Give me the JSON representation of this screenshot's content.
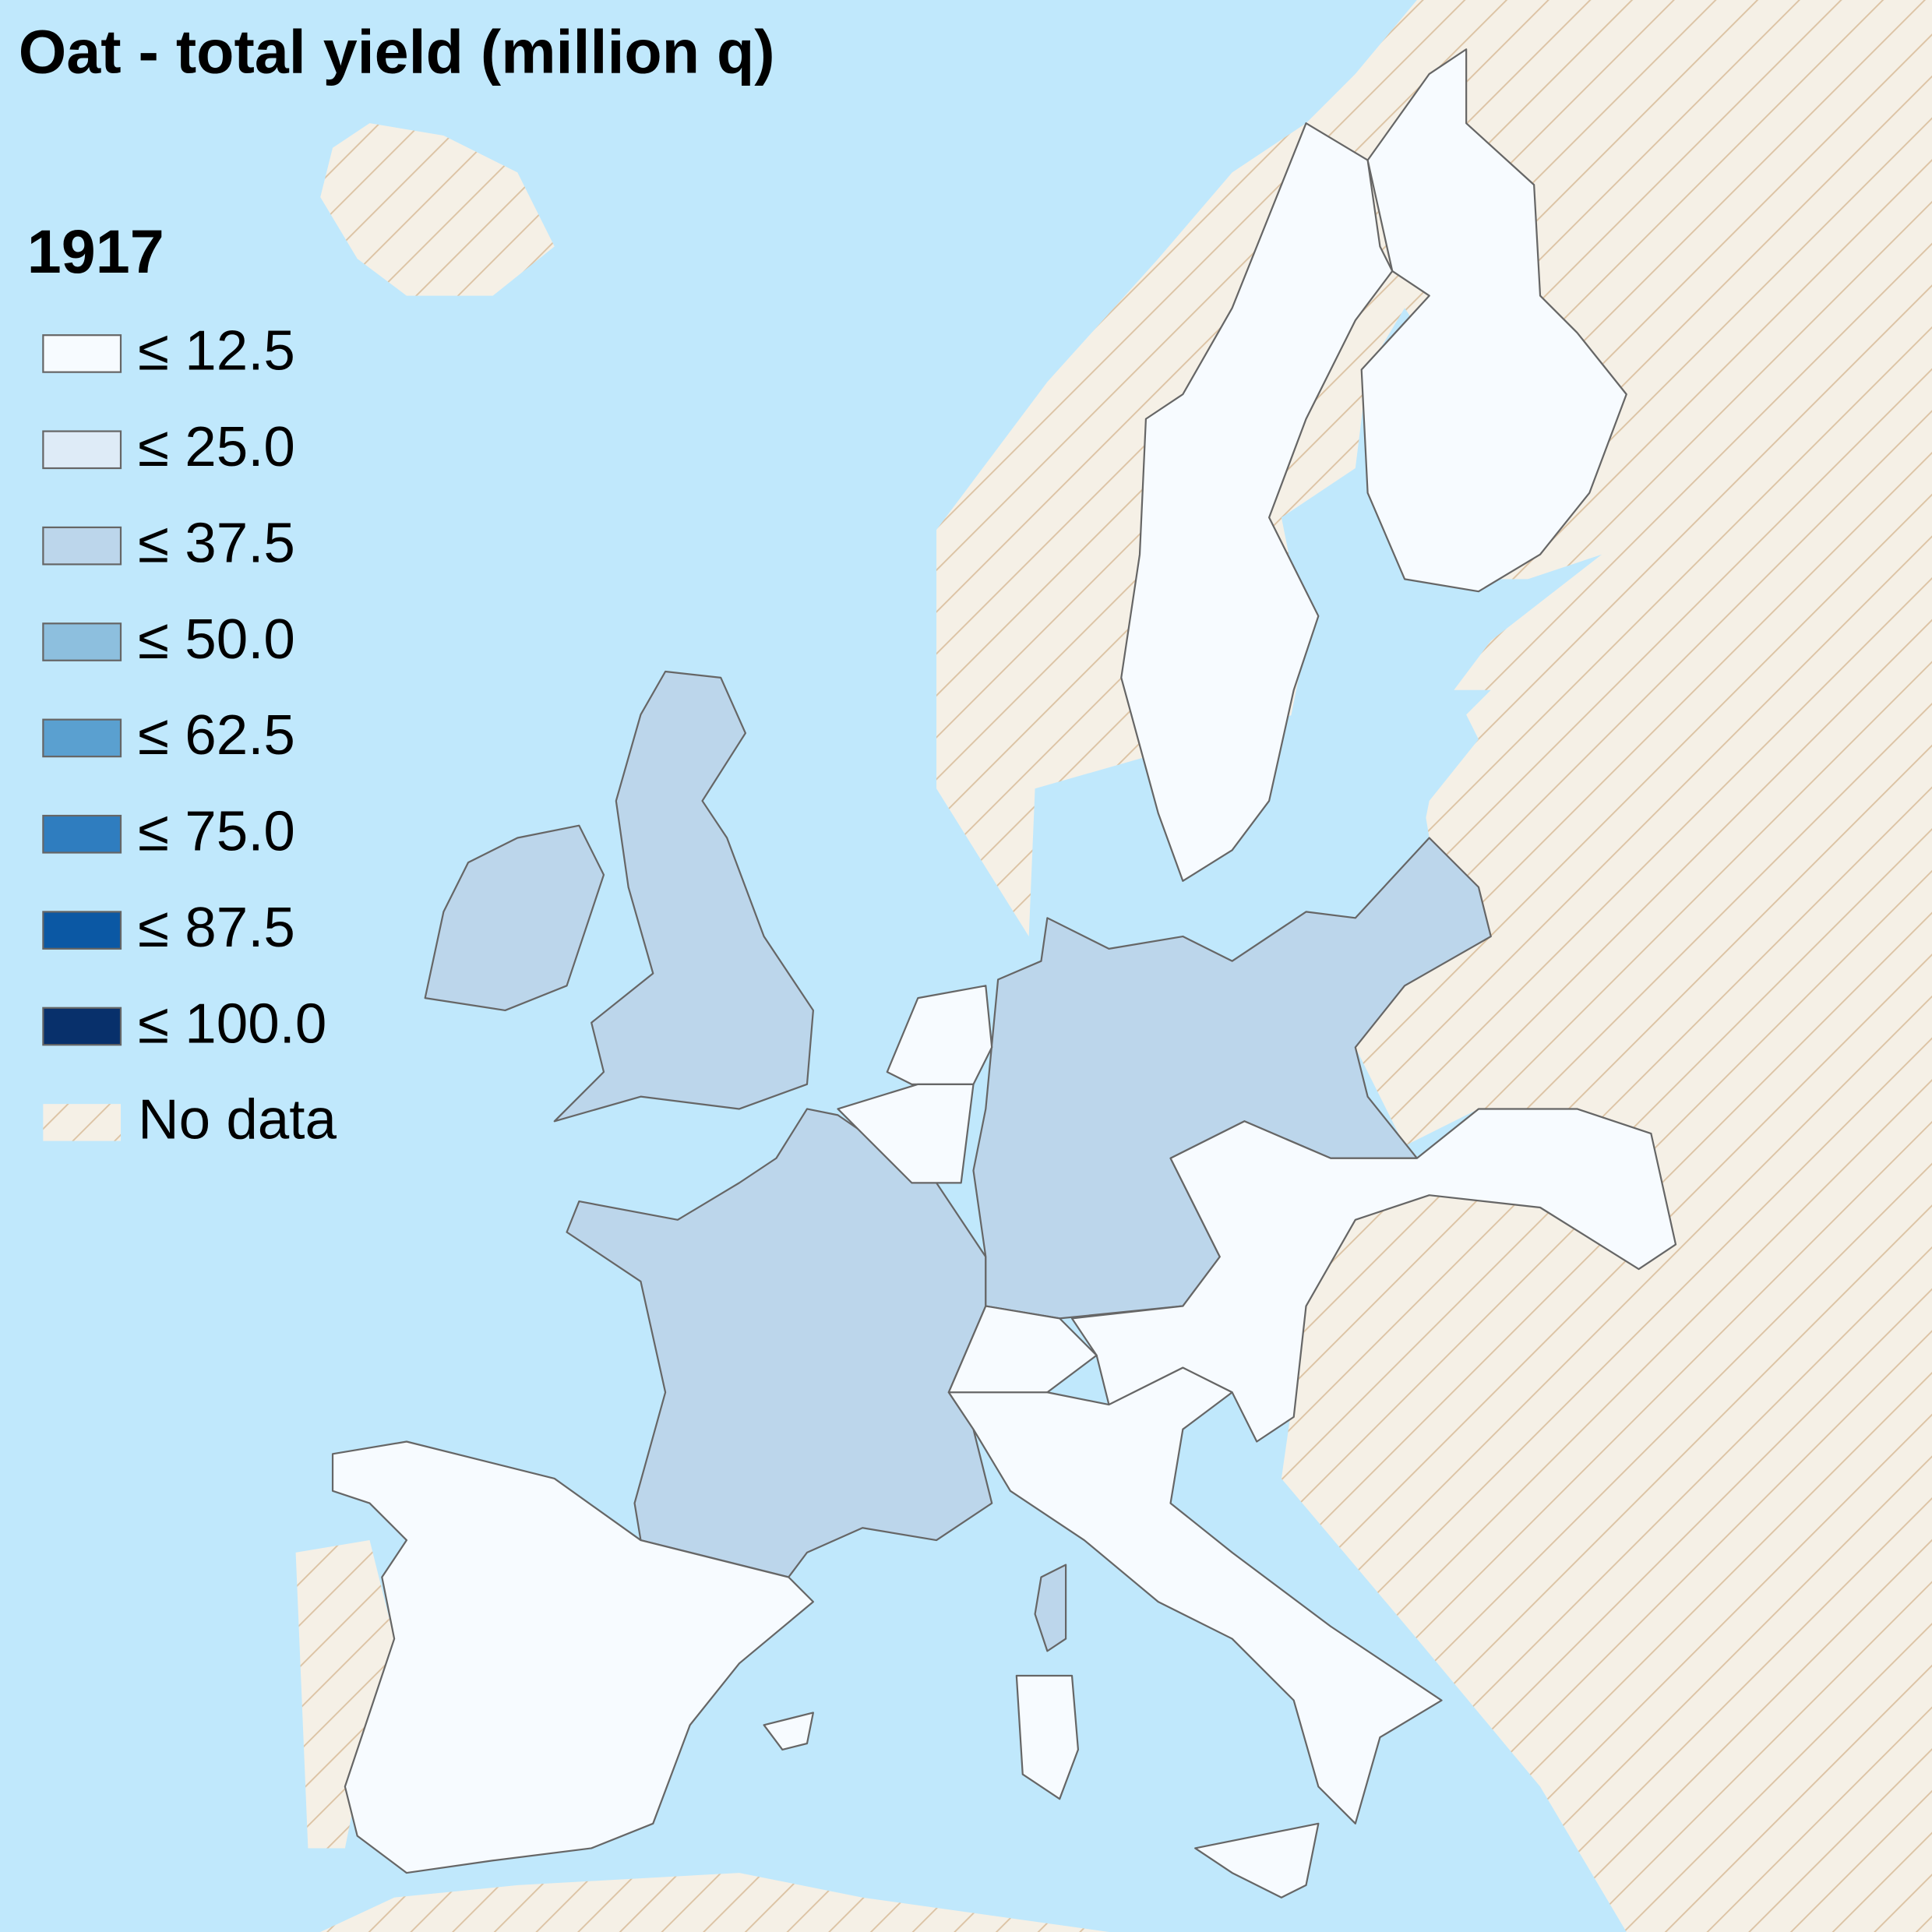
{
  "title": "Oat - total yield (million q)",
  "legend": {
    "title": "1917",
    "items": [
      {
        "label": "≤ 12.5",
        "color": "#f7fbff"
      },
      {
        "label": "≤ 25.0",
        "color": "#deebf7"
      },
      {
        "label": "≤ 37.5",
        "color": "#bcd6eb"
      },
      {
        "label": "≤ 50.0",
        "color": "#8dbfde"
      },
      {
        "label": "≤ 62.5",
        "color": "#5aa0d0"
      },
      {
        "label": "≤ 75.0",
        "color": "#2f7dbf"
      },
      {
        "label": "≤ 87.5",
        "color": "#0b58a4"
      },
      {
        "label": "≤ 100.0",
        "color": "#08306b"
      },
      {
        "label": "No data",
        "pattern": "hatch"
      }
    ]
  }
}
